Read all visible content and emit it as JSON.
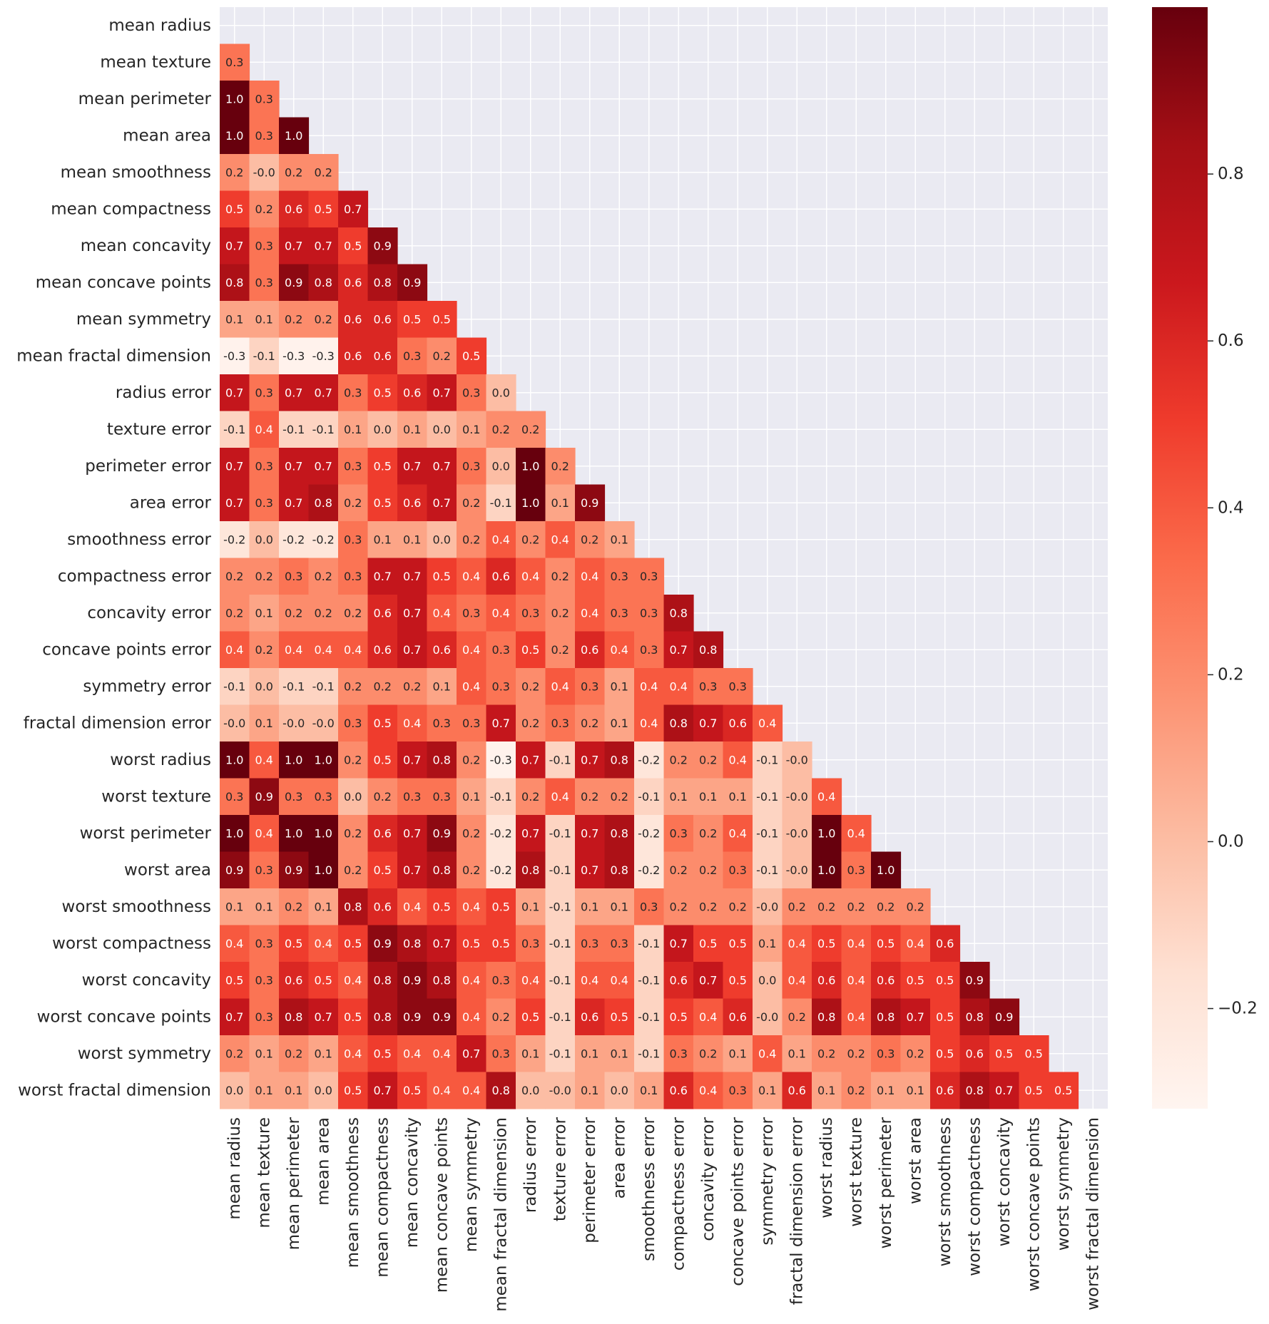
{
  "chart_data": {
    "type": "heatmap",
    "variables": [
      "mean radius",
      "mean texture",
      "mean perimeter",
      "mean area",
      "mean smoothness",
      "mean compactness",
      "mean concavity",
      "mean concave points",
      "mean symmetry",
      "mean fractal dimension",
      "radius error",
      "texture error",
      "perimeter error",
      "area error",
      "smoothness error",
      "compactness error",
      "concavity error",
      "concave points error",
      "symmetry error",
      "fractal dimension error",
      "worst radius",
      "worst texture",
      "worst perimeter",
      "worst area",
      "worst smoothness",
      "worst compactness",
      "worst concavity",
      "worst concave points",
      "worst symmetry",
      "worst fractal dimension"
    ],
    "lower_triangle": [
      [],
      [
        "0.3"
      ],
      [
        "1.0",
        "0.3"
      ],
      [
        "1.0",
        "0.3",
        "1.0"
      ],
      [
        "0.2",
        "-0.0",
        "0.2",
        "0.2"
      ],
      [
        "0.5",
        "0.2",
        "0.6",
        "0.5",
        "0.7"
      ],
      [
        "0.7",
        "0.3",
        "0.7",
        "0.7",
        "0.5",
        "0.9"
      ],
      [
        "0.8",
        "0.3",
        "0.9",
        "0.8",
        "0.6",
        "0.8",
        "0.9"
      ],
      [
        "0.1",
        "0.1",
        "0.2",
        "0.2",
        "0.6",
        "0.6",
        "0.5",
        "0.5"
      ],
      [
        "-0.3",
        "-0.1",
        "-0.3",
        "-0.3",
        "0.6",
        "0.6",
        "0.3",
        "0.2",
        "0.5"
      ],
      [
        "0.7",
        "0.3",
        "0.7",
        "0.7",
        "0.3",
        "0.5",
        "0.6",
        "0.7",
        "0.3",
        "0.0"
      ],
      [
        "-0.1",
        "0.4",
        "-0.1",
        "-0.1",
        "0.1",
        "0.0",
        "0.1",
        "0.0",
        "0.1",
        "0.2",
        "0.2"
      ],
      [
        "0.7",
        "0.3",
        "0.7",
        "0.7",
        "0.3",
        "0.5",
        "0.7",
        "0.7",
        "0.3",
        "0.0",
        "1.0",
        "0.2"
      ],
      [
        "0.7",
        "0.3",
        "0.7",
        "0.8",
        "0.2",
        "0.5",
        "0.6",
        "0.7",
        "0.2",
        "-0.1",
        "1.0",
        "0.1",
        "0.9"
      ],
      [
        "-0.2",
        "0.0",
        "-0.2",
        "-0.2",
        "0.3",
        "0.1",
        "0.1",
        "0.0",
        "0.2",
        "0.4",
        "0.2",
        "0.4",
        "0.2",
        "0.1"
      ],
      [
        "0.2",
        "0.2",
        "0.3",
        "0.2",
        "0.3",
        "0.7",
        "0.7",
        "0.5",
        "0.4",
        "0.6",
        "0.4",
        "0.2",
        "0.4",
        "0.3",
        "0.3"
      ],
      [
        "0.2",
        "0.1",
        "0.2",
        "0.2",
        "0.2",
        "0.6",
        "0.7",
        "0.4",
        "0.3",
        "0.4",
        "0.3",
        "0.2",
        "0.4",
        "0.3",
        "0.3",
        "0.8"
      ],
      [
        "0.4",
        "0.2",
        "0.4",
        "0.4",
        "0.4",
        "0.6",
        "0.7",
        "0.6",
        "0.4",
        "0.3",
        "0.5",
        "0.2",
        "0.6",
        "0.4",
        "0.3",
        "0.7",
        "0.8"
      ],
      [
        "-0.1",
        "0.0",
        "-0.1",
        "-0.1",
        "0.2",
        "0.2",
        "0.2",
        "0.1",
        "0.4",
        "0.3",
        "0.2",
        "0.4",
        "0.3",
        "0.1",
        "0.4",
        "0.4",
        "0.3",
        "0.3"
      ],
      [
        "-0.0",
        "0.1",
        "-0.0",
        "-0.0",
        "0.3",
        "0.5",
        "0.4",
        "0.3",
        "0.3",
        "0.7",
        "0.2",
        "0.3",
        "0.2",
        "0.1",
        "0.4",
        "0.8",
        "0.7",
        "0.6",
        "0.4"
      ],
      [
        "1.0",
        "0.4",
        "1.0",
        "1.0",
        "0.2",
        "0.5",
        "0.7",
        "0.8",
        "0.2",
        "-0.3",
        "0.7",
        "-0.1",
        "0.7",
        "0.8",
        "-0.2",
        "0.2",
        "0.2",
        "0.4",
        "-0.1",
        "-0.0"
      ],
      [
        "0.3",
        "0.9",
        "0.3",
        "0.3",
        "0.0",
        "0.2",
        "0.3",
        "0.3",
        "0.1",
        "-0.1",
        "0.2",
        "0.4",
        "0.2",
        "0.2",
        "-0.1",
        "0.1",
        "0.1",
        "0.1",
        "-0.1",
        "-0.0",
        "0.4"
      ],
      [
        "1.0",
        "0.4",
        "1.0",
        "1.0",
        "0.2",
        "0.6",
        "0.7",
        "0.9",
        "0.2",
        "-0.2",
        "0.7",
        "-0.1",
        "0.7",
        "0.8",
        "-0.2",
        "0.3",
        "0.2",
        "0.4",
        "-0.1",
        "-0.0",
        "1.0",
        "0.4"
      ],
      [
        "0.9",
        "0.3",
        "0.9",
        "1.0",
        "0.2",
        "0.5",
        "0.7",
        "0.8",
        "0.2",
        "-0.2",
        "0.8",
        "-0.1",
        "0.7",
        "0.8",
        "-0.2",
        "0.2",
        "0.2",
        "0.3",
        "-0.1",
        "-0.0",
        "1.0",
        "0.3",
        "1.0"
      ],
      [
        "0.1",
        "0.1",
        "0.2",
        "0.1",
        "0.8",
        "0.6",
        "0.4",
        "0.5",
        "0.4",
        "0.5",
        "0.1",
        "-0.1",
        "0.1",
        "0.1",
        "0.3",
        "0.2",
        "0.2",
        "0.2",
        "-0.0",
        "0.2",
        "0.2",
        "0.2",
        "0.2",
        "0.2"
      ],
      [
        "0.4",
        "0.3",
        "0.5",
        "0.4",
        "0.5",
        "0.9",
        "0.8",
        "0.7",
        "0.5",
        "0.5",
        "0.3",
        "-0.1",
        "0.3",
        "0.3",
        "-0.1",
        "0.7",
        "0.5",
        "0.5",
        "0.1",
        "0.4",
        "0.5",
        "0.4",
        "0.5",
        "0.4",
        "0.6"
      ],
      [
        "0.5",
        "0.3",
        "0.6",
        "0.5",
        "0.4",
        "0.8",
        "0.9",
        "0.8",
        "0.4",
        "0.3",
        "0.4",
        "-0.1",
        "0.4",
        "0.4",
        "-0.1",
        "0.6",
        "0.7",
        "0.5",
        "0.0",
        "0.4",
        "0.6",
        "0.4",
        "0.6",
        "0.5",
        "0.5",
        "0.9"
      ],
      [
        "0.7",
        "0.3",
        "0.8",
        "0.7",
        "0.5",
        "0.8",
        "0.9",
        "0.9",
        "0.4",
        "0.2",
        "0.5",
        "-0.1",
        "0.6",
        "0.5",
        "-0.1",
        "0.5",
        "0.4",
        "0.6",
        "-0.0",
        "0.2",
        "0.8",
        "0.4",
        "0.8",
        "0.7",
        "0.5",
        "0.8",
        "0.9"
      ],
      [
        "0.2",
        "0.1",
        "0.2",
        "0.1",
        "0.4",
        "0.5",
        "0.4",
        "0.4",
        "0.7",
        "0.3",
        "0.1",
        "-0.1",
        "0.1",
        "0.1",
        "-0.1",
        "0.3",
        "0.2",
        "0.1",
        "0.4",
        "0.1",
        "0.2",
        "0.2",
        "0.3",
        "0.2",
        "0.5",
        "0.6",
        "0.5",
        "0.5"
      ],
      [
        "0.0",
        "0.1",
        "0.1",
        "0.0",
        "0.5",
        "0.7",
        "0.5",
        "0.4",
        "0.4",
        "0.8",
        "0.0",
        "-0.0",
        "0.1",
        "0.0",
        "0.1",
        "0.6",
        "0.4",
        "0.3",
        "0.1",
        "0.6",
        "0.1",
        "0.2",
        "0.1",
        "0.1",
        "0.6",
        "0.8",
        "0.7",
        "0.5",
        "0.5"
      ]
    ],
    "colormap": "Reds",
    "value_range": [
      -0.32,
      1.0
    ],
    "colorbar_ticks": [
      -0.2,
      0.0,
      0.2,
      0.4,
      0.6,
      0.8
    ],
    "colorbar_tick_labels": [
      "−0.2",
      "0.0",
      "0.2",
      "0.4",
      "0.6",
      "0.8"
    ],
    "mask": "upper triangle including diagonal",
    "grid": true,
    "background_color": "#eaeaf2"
  }
}
